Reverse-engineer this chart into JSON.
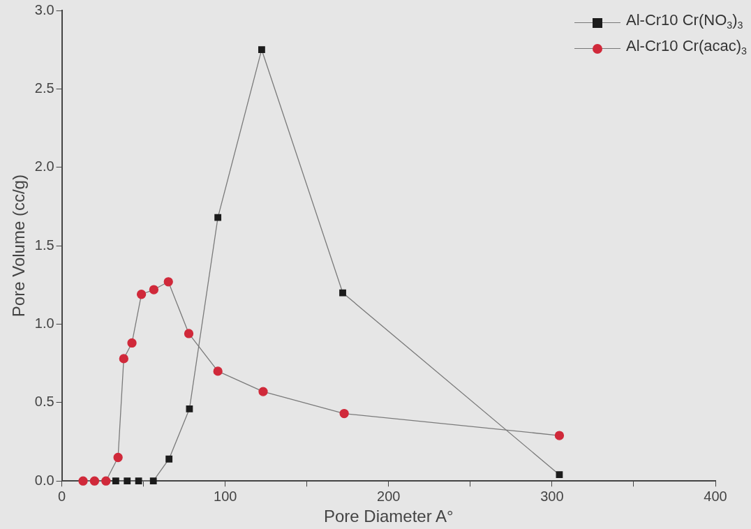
{
  "chart_data": {
    "type": "line",
    "xlabel": "Pore Diameter A°",
    "ylabel": "Pore Volume (cc/g)",
    "xlim": [
      0,
      400
    ],
    "xticks": [
      0,
      {
        "value": 50,
        "label": null
      },
      100,
      {
        "value": 150,
        "label": null
      },
      200,
      {
        "value": 250,
        "label": null
      },
      300,
      {
        "value": 350,
        "label": null
      },
      400
    ],
    "ylim": [
      0,
      3
    ],
    "yticks": [
      {
        "value": 0,
        "label": "0.0"
      },
      {
        "value": 0.5,
        "label": "0.5"
      },
      {
        "value": 1,
        "label": "1.0"
      },
      {
        "value": 1.5,
        "label": "1.5"
      },
      {
        "value": 2,
        "label": "2.0"
      },
      {
        "value": 2.5,
        "label": "2.5"
      },
      {
        "value": 3,
        "label": "3.0"
      }
    ],
    "legend": "top right",
    "grid": false,
    "series": [
      {
        "name": "Al-Cr10 Cr(NO$_{3}$)$_{3}$",
        "color": "#1c1c1c",
        "marker": "square",
        "x": [
          33,
          40,
          47,
          56,
          65.6,
          78.1,
          95.5,
          122.3,
          171.9,
          304.5
        ],
        "values": [
          0,
          0,
          0,
          0,
          0.14,
          0.46,
          1.68,
          2.75,
          1.2,
          0.04
        ]
      },
      {
        "name": "Al-Cr10 Cr(acac)$_{3}$",
        "color": "#d0293a",
        "marker": "circle",
        "x": [
          13,
          20,
          27,
          34.4,
          37.9,
          42.9,
          48.7,
          56.3,
          65.2,
          77.7,
          95.5,
          123.2,
          172.8,
          304.5
        ],
        "values": [
          0,
          0,
          0,
          0.15,
          0.78,
          0.88,
          1.19,
          1.22,
          1.27,
          0.94,
          0.7,
          0.57,
          0.43,
          0.29
        ]
      }
    ]
  }
}
